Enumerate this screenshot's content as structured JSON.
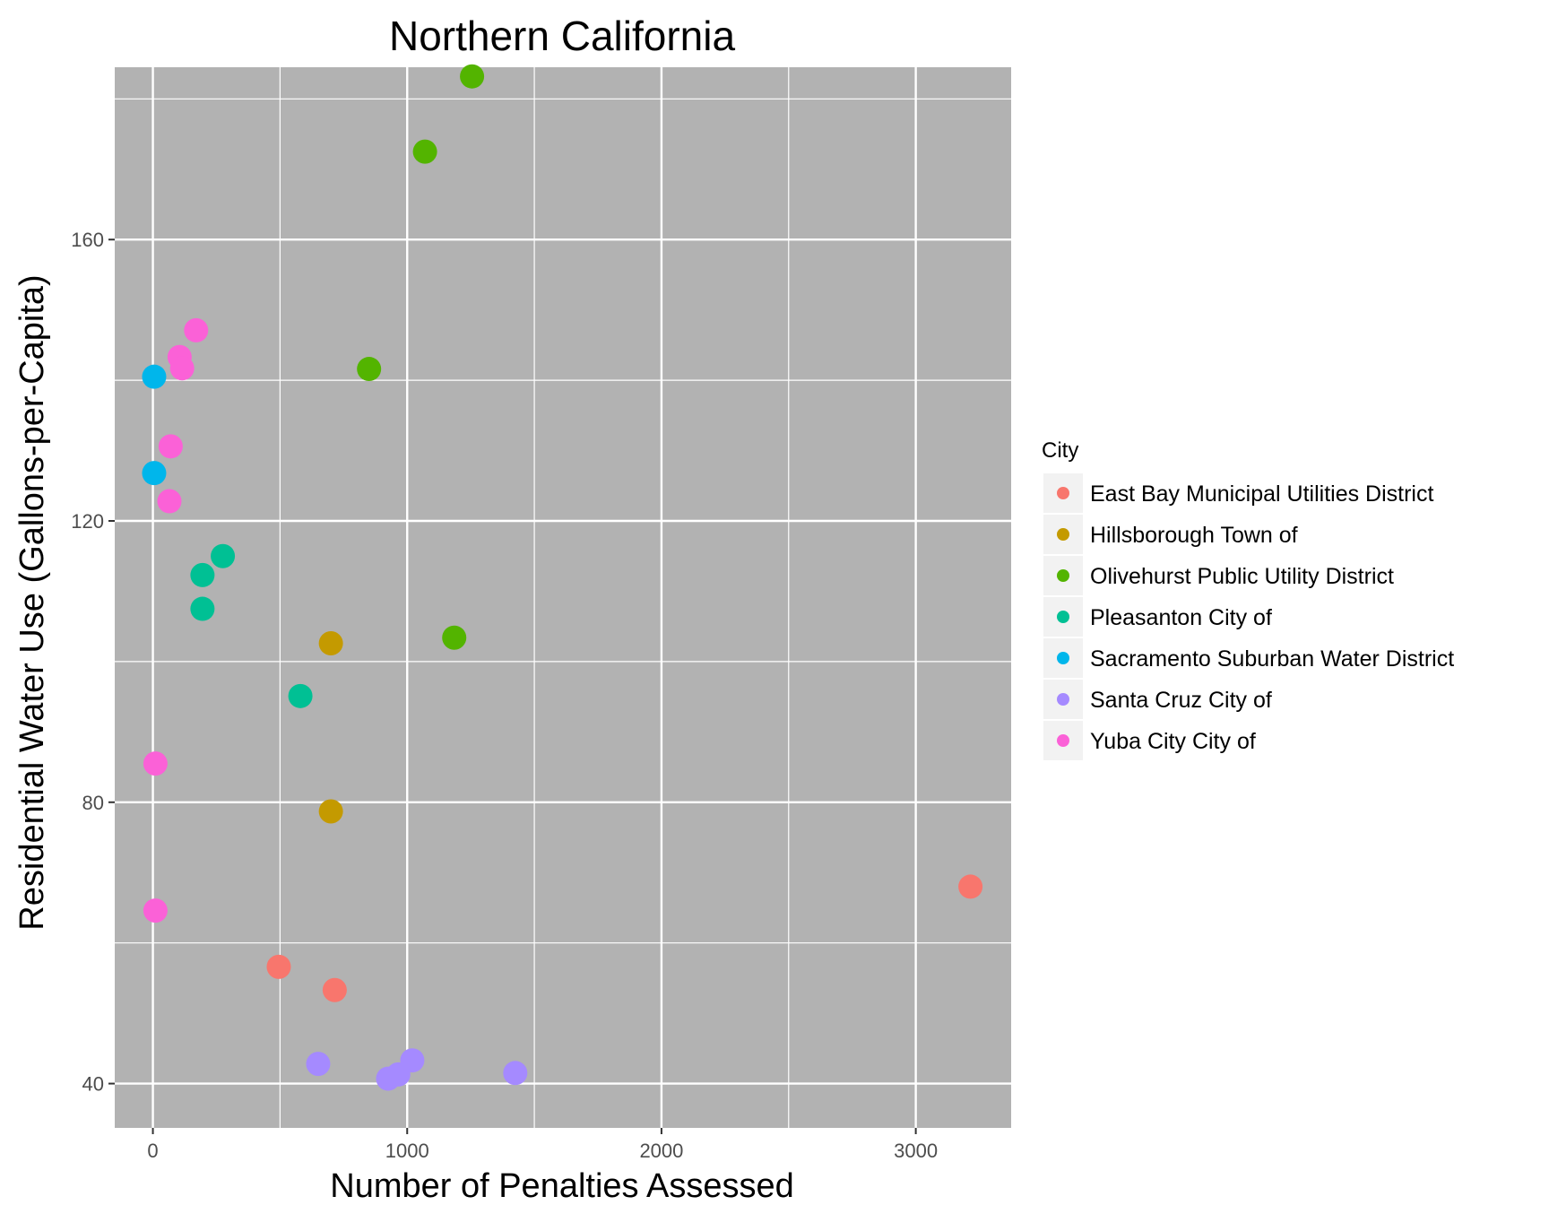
{
  "chart_data": {
    "type": "scatter",
    "title": "Northern California",
    "xlabel": "Number of Penalties Assessed",
    "ylabel": "Residential Water Use (Gallons-per-Capita)",
    "xlim": [
      -150,
      3375
    ],
    "ylim": [
      33.7,
      184.5
    ],
    "x_ticks": [
      0,
      1000,
      2000,
      3000
    ],
    "y_ticks": [
      40,
      80,
      120,
      160
    ],
    "x_tick_labels": [
      "0",
      "1000",
      "2000",
      "3000"
    ],
    "y_tick_labels": [
      "40",
      "80",
      "120",
      "160"
    ],
    "grid": true,
    "background": "#b2b2b2",
    "legend": {
      "title": "City",
      "position": "right"
    },
    "series": [
      {
        "name": "East Bay Municipal Utilities District",
        "color": "#F8766D",
        "points": [
          [
            495,
            56.6
          ],
          [
            715,
            53.3
          ],
          [
            3215,
            68.0
          ]
        ]
      },
      {
        "name": "Hillsborough  Town of",
        "color": "#C49A00",
        "points": [
          [
            700,
            102.6
          ],
          [
            700,
            78.7
          ]
        ]
      },
      {
        "name": "Olivehurst Public Utility District",
        "color": "#53B400",
        "points": [
          [
            1255,
            183.2
          ],
          [
            1070,
            172.5
          ],
          [
            850,
            141.6
          ],
          [
            1185,
            103.4
          ]
        ]
      },
      {
        "name": "Pleasanton  City of",
        "color": "#00C094",
        "points": [
          [
            275,
            115.0
          ],
          [
            195,
            112.3
          ],
          [
            195,
            107.5
          ],
          [
            580,
            95.1
          ]
        ]
      },
      {
        "name": "Sacramento Suburban Water District",
        "color": "#00B6EB",
        "points": [
          [
            5,
            140.5
          ],
          [
            5,
            126.8
          ]
        ]
      },
      {
        "name": "Santa Cruz  City of",
        "color": "#A58AFF",
        "points": [
          [
            650,
            42.8
          ],
          [
            925,
            40.7
          ],
          [
            965,
            41.3
          ],
          [
            1020,
            43.3
          ],
          [
            1425,
            41.5
          ]
        ]
      },
      {
        "name": "Yuba City  City of",
        "color": "#FB61D7",
        "points": [
          [
            170,
            147.1
          ],
          [
            105,
            143.3
          ],
          [
            115,
            141.7
          ],
          [
            70,
            130.6
          ],
          [
            65,
            122.8
          ],
          [
            10,
            85.5
          ],
          [
            10,
            64.6
          ]
        ]
      }
    ]
  }
}
